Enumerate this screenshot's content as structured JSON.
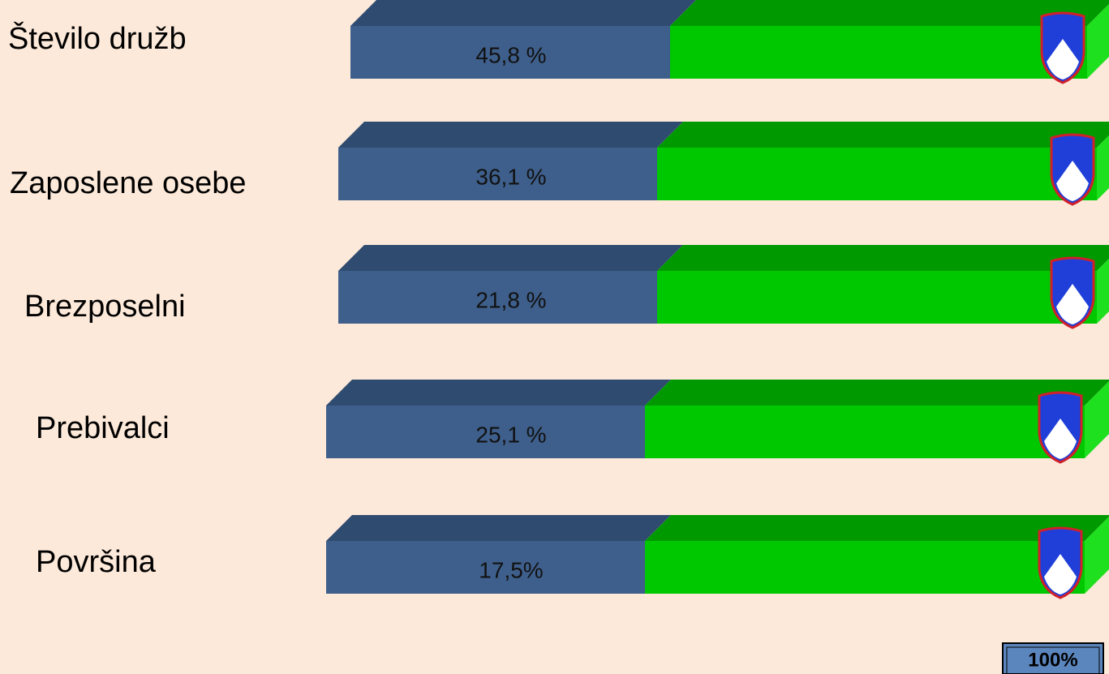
{
  "rows": [
    {
      "label": "Število družb",
      "share": "45,8 %"
    },
    {
      "label": "Zaposlene osebe",
      "share": "36,1 %"
    },
    {
      "label": "Brezposelni",
      "share": "21,8 %"
    },
    {
      "label": "Prebivalci",
      "share": "25,1 %"
    },
    {
      "label": "Površina",
      "share": "17,5%"
    }
  ],
  "legend": {
    "label": "100%"
  }
}
